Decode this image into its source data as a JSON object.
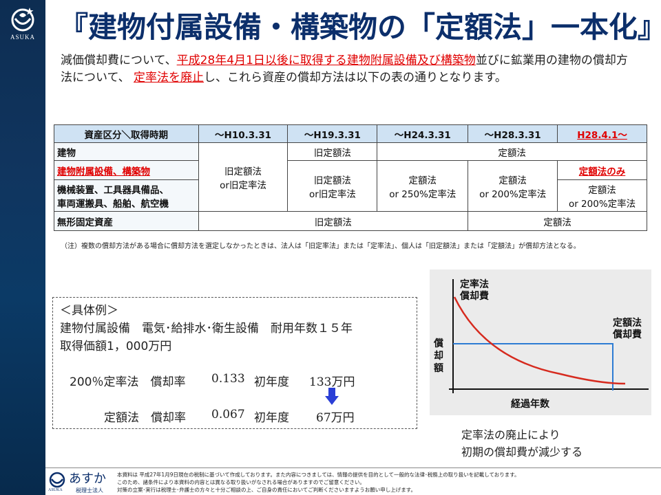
{
  "brand": {
    "name": "ASUKA",
    "footer_name": "あすか",
    "footer_sub": "税理士法人",
    "footer_small": "ASUKA"
  },
  "title": "『建物付属設備・構築物の「定額法」一本化』",
  "intro": {
    "p1": "減価償却費について、",
    "p2": "平成28年4月1日以後に取得する建物附属設備及び構築物",
    "p3": "並びに鉱業用の建物の償却方法について、 ",
    "p4": "定率法を廃止",
    "p5": "し、これら資産の償却方法は以下の表の通りとなります。"
  },
  "table": {
    "header_first": "資産区分＼取得時期",
    "periods": [
      "～H10.3.31",
      "～H19.3.31",
      "～H24.3.31",
      "～H28.3.31",
      "H28.4.1～"
    ],
    "rows": {
      "building": "建物",
      "fixtures": "建物附属設備、構築物",
      "machinery": "機械装置、工具器具備品、\n車両運搬具、船舶、航空機",
      "intangible": "無形固定資産"
    },
    "cells": {
      "old_straight_or_declining": "旧定額法\nor旧定率法",
      "old_straight": "旧定額法",
      "straight": "定額法",
      "machinery_h19": "旧定額法\nor旧定率法",
      "machinery_h24": "定額法\nor 250%定率法",
      "machinery_h28": "定額法\nor 200%定率法",
      "machinery_new": "定額法\nor 200%定率法",
      "fixtures_new": "定額法のみ",
      "intangible_old": "旧定額法",
      "intangible_new": "定額法"
    },
    "note": "（注）複数の償却方法がある場合に償却方法を選定しなかったときは、法人は「旧定率法」または「定率法」、個人は「旧定額法」または「定額法」が償却方法となる。"
  },
  "example": {
    "heading": "＜具体例＞",
    "line1": "建物付属設備　電気･給排水･衛生設備　耐用年数１５年",
    "line2": "取得価額1，000万円",
    "line3_label": "200％定率法　償却率",
    "line3_rate": "0.133",
    "line3_first": "初年度",
    "line3_amount": "133万円",
    "line4_label": "定額法　償却率",
    "line4_rate": "0.067",
    "line4_first": "初年度",
    "line4_amount": "67万円"
  },
  "graph": {
    "declining_label": "定率法\n償却費",
    "straight_label": "定額法\n償却費",
    "y_label": "償\n却\n額",
    "x_label": "経過年数",
    "colors": {
      "declining": "#d62a1e",
      "straight": "#2c7bd3"
    }
  },
  "graph_caption": "定率法の廃止により\n初期の償却費が減少する",
  "footer": {
    "text": "本資料は 平成27年1月9日現在の税制に基づいて作成しております。また内容につきましては、情報の提供を目的として一般的な法律･税務上の取り扱いを記載しております。\nこのため、諸条件により本資料の内容とは異なる取り扱いがなされる場合がありますのでご留意ください。\n対策の立案･実行は税理士･弁護士の方々と十分ご相談の上、ご自身の責任においてご判断くださいますようお願い申し上げます。"
  },
  "colors": {
    "title": "#0c2f6b",
    "highlight": "#e00000",
    "table_header": "#cfe2f3",
    "sidebar": "#0d2d52",
    "arrow": "#2b3fd6"
  }
}
